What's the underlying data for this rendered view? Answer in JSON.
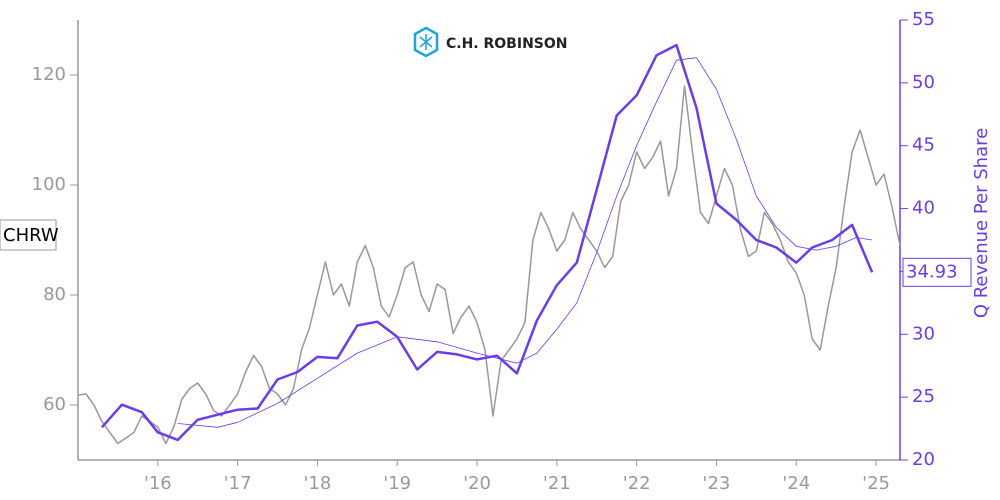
{
  "chart_data": {
    "type": "line",
    "logo_text": "C.H. ROBINSON",
    "ylabel": "CHRW",
    "y2label": "Q Revenue Per Share",
    "xlim": [
      2015.0,
      2025.3
    ],
    "xticks": [
      {
        "value": 2016,
        "label": "'16"
      },
      {
        "value": 2017,
        "label": "'17"
      },
      {
        "value": 2018,
        "label": "'18"
      },
      {
        "value": 2019,
        "label": "'19"
      },
      {
        "value": 2020,
        "label": "'20"
      },
      {
        "value": 2021,
        "label": "'21"
      },
      {
        "value": 2022,
        "label": "'22"
      },
      {
        "value": 2023,
        "label": "'23"
      },
      {
        "value": 2024,
        "label": "'24"
      },
      {
        "value": 2025,
        "label": "'25"
      }
    ],
    "ylim": [
      50,
      130
    ],
    "yticks": [
      60,
      80,
      100,
      120
    ],
    "y2lim": [
      20,
      55
    ],
    "y2ticks": [
      20,
      25,
      30,
      35,
      40,
      45,
      50,
      55
    ],
    "series": [
      {
        "color": "#999999",
        "width": 1.5,
        "x": [
          2015.0,
          2015.1,
          2015.2,
          2015.3,
          2015.4,
          2015.5,
          2015.6,
          2015.7,
          2015.8,
          2015.9,
          2016.0,
          2016.1,
          2016.2,
          2016.3,
          2016.4,
          2016.5,
          2016.6,
          2016.7,
          2016.8,
          2016.9,
          2017.0,
          2017.1,
          2017.2,
          2017.3,
          2017.4,
          2017.5,
          2017.6,
          2017.7,
          2017.8,
          2017.9,
          2018.0,
          2018.1,
          2018.2,
          2018.3,
          2018.4,
          2018.5,
          2018.6,
          2018.7,
          2018.8,
          2018.9,
          2019.0,
          2019.1,
          2019.2,
          2019.3,
          2019.4,
          2019.5,
          2019.6,
          2019.7,
          2019.8,
          2019.9,
          2020.0,
          2020.1,
          2020.2,
          2020.3,
          2020.4,
          2020.5,
          2020.6,
          2020.7,
          2020.8,
          2020.9,
          2021.0,
          2021.1,
          2021.2,
          2021.3,
          2021.4,
          2021.5,
          2021.6,
          2021.7,
          2021.8,
          2021.9,
          2022.0,
          2022.1,
          2022.2,
          2022.3,
          2022.4,
          2022.5,
          2022.6,
          2022.7,
          2022.8,
          2022.9,
          2023.0,
          2023.1,
          2023.2,
          2023.3,
          2023.4,
          2023.5,
          2023.6,
          2023.7,
          2023.8,
          2023.9,
          2024.0,
          2024.1,
          2024.2,
          2024.3,
          2024.4,
          2024.5,
          2024.6,
          2024.7,
          2024.8,
          2024.9,
          2025.0,
          2025.1,
          2025.2,
          2025.3
        ],
        "values": [
          61.8,
          62,
          60,
          57,
          55,
          53,
          54,
          55,
          58,
          57,
          56,
          53,
          56,
          61,
          63,
          64,
          62,
          59,
          58,
          60,
          62,
          66,
          69,
          67,
          63,
          62,
          60,
          63,
          70,
          74,
          80,
          86,
          80,
          82,
          78,
          86,
          89,
          85,
          78,
          76,
          80,
          85,
          86,
          80,
          77,
          82,
          81,
          73,
          76,
          78,
          75,
          70,
          58,
          68,
          70,
          72,
          75,
          90,
          95,
          92,
          88,
          90,
          95,
          92,
          90,
          88,
          85,
          87,
          97,
          100,
          106,
          103,
          105,
          108,
          98,
          103,
          118,
          106,
          95,
          93,
          98,
          103,
          100,
          92,
          87,
          88,
          95,
          93,
          90,
          86,
          84,
          80,
          72,
          70,
          78,
          85,
          96,
          106,
          110,
          105,
          100,
          102,
          96,
          89
        ]
      },
      {
        "color": "#6a3de8",
        "width": 2.5,
        "axis": "y2",
        "x": [
          2015.3,
          2015.55,
          2015.8,
          2016.0,
          2016.25,
          2016.5,
          2016.75,
          2017.0,
          2017.25,
          2017.5,
          2017.75,
          2018.0,
          2018.25,
          2018.5,
          2018.75,
          2019.0,
          2019.25,
          2019.5,
          2019.75,
          2020.0,
          2020.25,
          2020.5,
          2020.75,
          2021.0,
          2021.25,
          2021.5,
          2021.75,
          2022.0,
          2022.25,
          2022.5,
          2022.75,
          2023.0,
          2023.25,
          2023.5,
          2023.75,
          2024.0,
          2024.2,
          2024.45,
          2024.7,
          2024.95
        ],
        "values": [
          22.6,
          24.4,
          23.8,
          22.2,
          21.6,
          23.2,
          23.6,
          24,
          24.1,
          26.4,
          27,
          28.2,
          28.1,
          30.7,
          31,
          29.8,
          27.2,
          28.6,
          28.4,
          28,
          28.3,
          26.9,
          31.1,
          33.9,
          35.7,
          41.5,
          47.4,
          49,
          52.2,
          53,
          48,
          40.4,
          39.1,
          37.5,
          36.9,
          35.7,
          36.9,
          37.5,
          38.7,
          34.93
        ]
      },
      {
        "color": "#6a3de8",
        "width": 0.8,
        "axis": "y2",
        "x": [
          2016.25,
          2016.75,
          2017.0,
          2017.5,
          2018.0,
          2018.5,
          2019.0,
          2019.5,
          2020.0,
          2020.5,
          2020.75,
          2021.0,
          2021.25,
          2021.5,
          2021.75,
          2022.0,
          2022.25,
          2022.5,
          2022.75,
          2023.0,
          2023.25,
          2023.5,
          2023.75,
          2024.0,
          2024.25,
          2024.5,
          2024.75,
          2024.95
        ],
        "values": [
          22.9,
          22.6,
          23,
          24.5,
          26.5,
          28.5,
          29.8,
          29.4,
          28.5,
          27.7,
          28.5,
          30.4,
          32.5,
          36.5,
          41,
          45,
          48.5,
          51.8,
          52,
          49.5,
          45.5,
          41,
          38.5,
          37,
          36.7,
          37,
          37.7,
          37.5
        ]
      }
    ]
  }
}
